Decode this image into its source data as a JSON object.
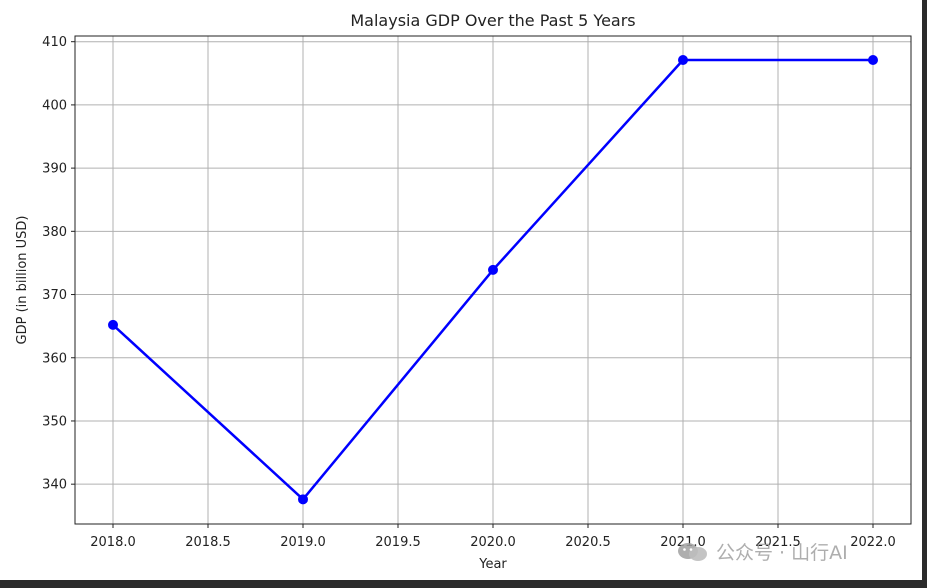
{
  "chart_data": {
    "type": "line",
    "title": "Malaysia GDP Over the Past 5 Years",
    "xlabel": "Year",
    "ylabel": "GDP (in billion USD)",
    "x": [
      2018,
      2019,
      2020,
      2021,
      2022
    ],
    "series": [
      {
        "values": [
          365.2,
          337.6,
          373.9,
          407.1,
          407.1
        ],
        "color": "#0000ff",
        "marker": "circle"
      }
    ],
    "xlim": [
      2017.8,
      2022.2
    ],
    "ylim": [
      333.7,
      410.9
    ],
    "xticks": [
      "2018.0",
      "2018.5",
      "2019.0",
      "2019.5",
      "2020.0",
      "2020.5",
      "2021.0",
      "2021.5",
      "2022.0"
    ],
    "yticks": [
      "340",
      "350",
      "360",
      "370",
      "380",
      "390",
      "400",
      "410"
    ],
    "grid": true,
    "legend": "none"
  },
  "watermark": {
    "text": "公众号 · 山行AI",
    "icon": "wechat-icon"
  },
  "colors": {
    "background": "#2b2b2b",
    "figure": "#ffffff",
    "grid": "#b0b0b0",
    "line": "#0000ff"
  }
}
